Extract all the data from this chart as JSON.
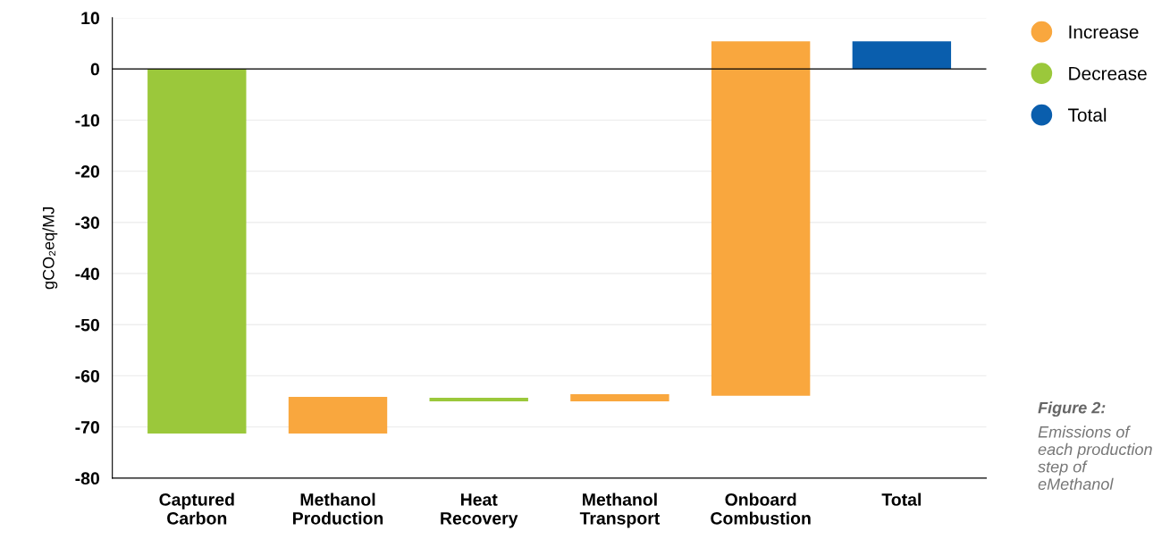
{
  "chart_data": {
    "type": "bar",
    "ylabel": "gCO₂eq/MJ",
    "categories": [
      "Captured\nCarbon",
      "Methanol\nProduction",
      "Heat\nRecovery",
      "Methanol\nTransport",
      "Onboard\nCombustion",
      "Total"
    ],
    "series": [
      {
        "name": "Increase",
        "color": "#f9a73e",
        "values": [
          null,
          7.2,
          null,
          1.4,
          69.3,
          null
        ],
        "base": [
          null,
          -71.3,
          null,
          -65.0,
          -63.9,
          null
        ]
      },
      {
        "name": "Decrease",
        "color": "#9bc83b",
        "values": [
          -71.3,
          null,
          -0.7,
          null,
          null,
          null
        ],
        "base": [
          0,
          null,
          -64.3,
          null,
          null,
          null
        ]
      },
      {
        "name": "Total",
        "color": "#0a5ead",
        "values": [
          null,
          null,
          null,
          null,
          null,
          5.4
        ],
        "base": [
          null,
          null,
          null,
          null,
          null,
          0
        ]
      }
    ],
    "ylim": [
      -80,
      10
    ],
    "yticks": [
      10,
      0,
      -10,
      -20,
      -30,
      -40,
      -50,
      -60,
      -70,
      -80
    ],
    "grid": "y",
    "legend": "top right",
    "ref_lines": [
      {
        "axis": "y",
        "value": 0,
        "color": "#000000"
      }
    ],
    "annotations": [
      "Figure 2:",
      "Emissions of each production step of eMethanol"
    ]
  }
}
